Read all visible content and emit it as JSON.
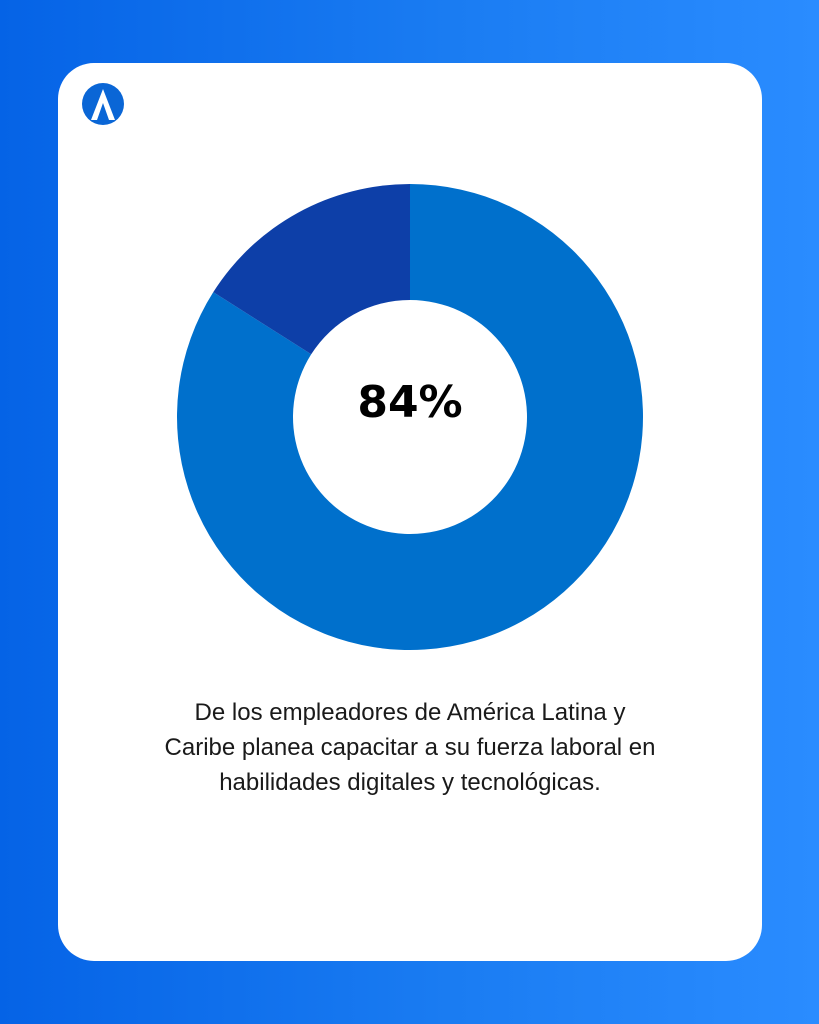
{
  "brand": {
    "logo_icon": "brand-logo-icon",
    "colors": {
      "background": "#1a7cf2",
      "card": "#ffffff"
    }
  },
  "chart_data": {
    "type": "pie",
    "style": "donut",
    "slices": [
      {
        "value": 84,
        "color": "#0070cc"
      },
      {
        "value": 16,
        "color": "#0d3fa8"
      }
    ],
    "center_label": "84%"
  },
  "caption": {
    "line1": "De los empleadores de América Latina y",
    "line2": "Caribe planea capacitar a su fuerza laboral en",
    "line3": "habilidades digitales y tecnológicas."
  }
}
